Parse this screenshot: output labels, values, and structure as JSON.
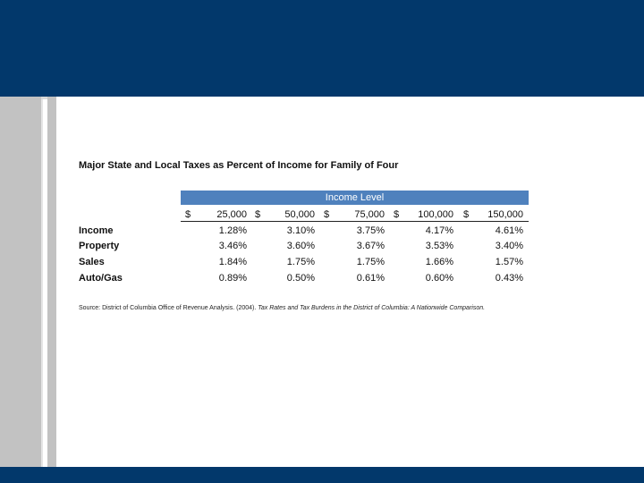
{
  "slide": {
    "colors": {
      "band": "#02386b",
      "stripe": "#c2c2c2",
      "table_header": "#4f81bd"
    }
  },
  "table": {
    "title": "Major State and Local Taxes as Percent of Income for Family of Four",
    "header_label": "Income Level",
    "currency_symbol": "$",
    "income_levels": [
      "25,000",
      "50,000",
      "75,000",
      "100,000",
      "150,000"
    ],
    "rows": [
      {
        "label": "Income",
        "values": [
          "1.28%",
          "3.10%",
          "3.75%",
          "4.17%",
          "4.61%"
        ]
      },
      {
        "label": "Property",
        "values": [
          "3.46%",
          "3.60%",
          "3.67%",
          "3.53%",
          "3.40%"
        ]
      },
      {
        "label": "Sales",
        "values": [
          "1.84%",
          "1.75%",
          "1.75%",
          "1.66%",
          "1.57%"
        ]
      },
      {
        "label": "Auto/Gas",
        "values": [
          "0.89%",
          "0.50%",
          "0.61%",
          "0.60%",
          "0.43%"
        ]
      }
    ],
    "source_prefix": "Source: District of Columbia Office of Revenue Analysis. (2004). ",
    "source_title": "Tax Rates and Tax Burdens in the District of Columbia: A Nationwide Comparison."
  }
}
